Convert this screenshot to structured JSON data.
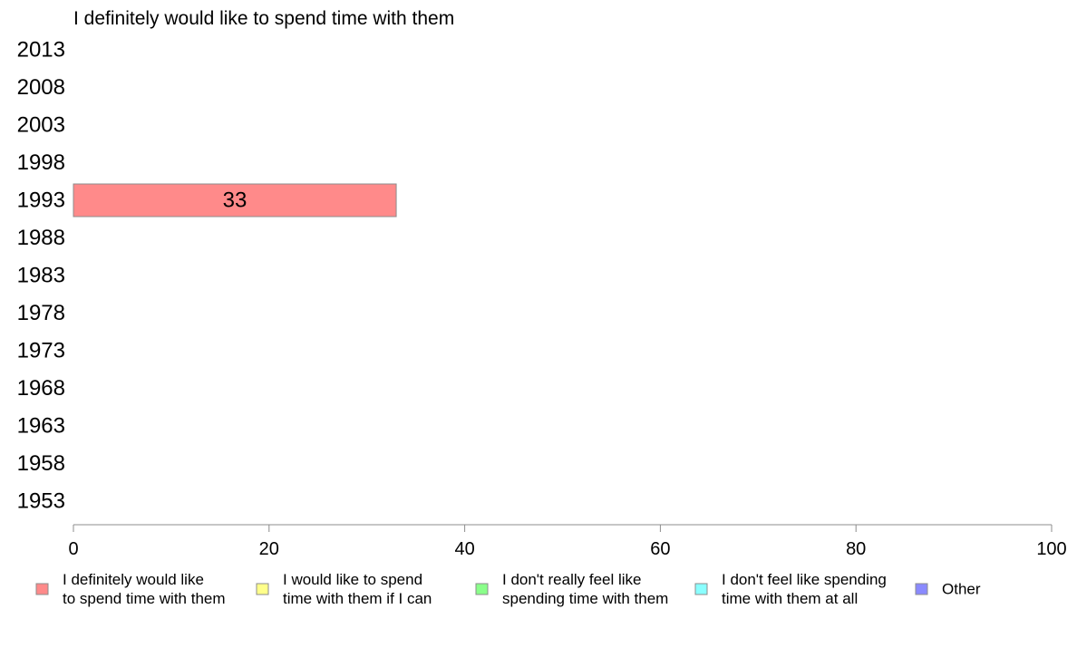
{
  "chart_data": {
    "type": "bar",
    "orientation": "horizontal",
    "title": "I definitely would like to spend time with them",
    "categories": [
      "2013",
      "2008",
      "2003",
      "1998",
      "1993",
      "1988",
      "1983",
      "1978",
      "1973",
      "1968",
      "1963",
      "1958",
      "1953"
    ],
    "series": [
      {
        "name": "I definitely would like to spend time with them",
        "color": "#ff8a8a",
        "values": [
          null,
          null,
          null,
          null,
          33,
          null,
          null,
          null,
          null,
          null,
          null,
          null,
          null
        ]
      }
    ],
    "xlim": [
      0,
      100
    ],
    "xticks": [
      0,
      20,
      40,
      60,
      80,
      100
    ],
    "xlabel": "",
    "ylabel": "",
    "grid": false,
    "legend_position": "bottom",
    "legend": [
      {
        "lines": [
          "I definitely would like",
          "to spend time with them"
        ],
        "color": "#ff8a8a"
      },
      {
        "lines": [
          "I would like to spend",
          "time with them if I can"
        ],
        "color": "#ffff8a"
      },
      {
        "lines": [
          "I don't really feel like",
          "spending time with them"
        ],
        "color": "#8aff8a"
      },
      {
        "lines": [
          "I don't feel like spending",
          "time with them at all"
        ],
        "color": "#8affff"
      },
      {
        "lines": [
          "Other"
        ],
        "color": "#8a8aff"
      }
    ]
  }
}
